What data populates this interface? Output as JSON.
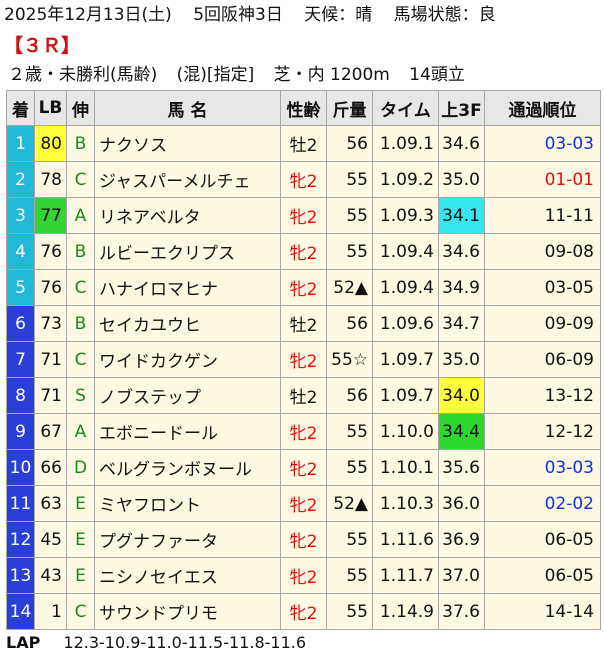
{
  "header": {
    "date": "2025年12月13日(土)",
    "meeting": "5回阪神3日",
    "weather": "天候：晴",
    "track": "馬場状態：良"
  },
  "race_no": "【３Ｒ】",
  "conditions": {
    "class": "２歳・未勝利(馬齢)",
    "type": "(混)[指定]",
    "course": "芝・内 1200m",
    "field": "14頭立"
  },
  "columns": [
    "着",
    "LB",
    "伸",
    "馬 名",
    "性齢",
    "斤量",
    "タイム",
    "上3F",
    "通過順位"
  ],
  "colors": {
    "waku": [
      "#ffffff",
      "#222222",
      "#e62020",
      "#1a3fd8",
      "#ffee33",
      "#22a022",
      "#f39a1e",
      "#ff6fb0"
    ],
    "lb_yellow": "#ffff3c",
    "lb_green": "#33d433",
    "f3_cyan": "#33e6f0",
    "f3_yellow": "#ffff3c",
    "f3_green": "#2ad92a",
    "female": "#e01010",
    "corner_blue": "#1030e0",
    "corner_red": "#e01010"
  },
  "rows": [
    {
      "pos": "1",
      "waku_bg": "#22b8d8",
      "lb": "80",
      "lb_bg": "#ffff3c",
      "nobi": "B",
      "name": "ナクソス",
      "sex": "牡2",
      "female": false,
      "kin": "56",
      "time": "1.09.1",
      "f3": "34.6",
      "f3_bg": "",
      "corner": "03-03",
      "corner_color": "blue"
    },
    {
      "pos": "2",
      "waku_bg": "#22b8d8",
      "lb": "78",
      "lb_bg": "",
      "nobi": "C",
      "name": "ジャスパーメルチェ",
      "sex": "牝2",
      "female": true,
      "kin": "55",
      "time": "1.09.2",
      "f3": "35.0",
      "f3_bg": "",
      "corner": "01-01",
      "corner_color": "red"
    },
    {
      "pos": "3",
      "waku_bg": "#22b8d8",
      "lb": "77",
      "lb_bg": "#33d433",
      "nobi": "A",
      "name": "リネアベルタ",
      "sex": "牝2",
      "female": true,
      "kin": "55",
      "time": "1.09.3",
      "f3": "34.1",
      "f3_bg": "#33e6f0",
      "corner": "11-11",
      "corner_color": ""
    },
    {
      "pos": "4",
      "waku_bg": "#22b8d8",
      "lb": "76",
      "lb_bg": "",
      "nobi": "B",
      "name": "ルビーエクリプス",
      "sex": "牝2",
      "female": true,
      "kin": "55",
      "time": "1.09.4",
      "f3": "34.6",
      "f3_bg": "",
      "corner": "09-08",
      "corner_color": ""
    },
    {
      "pos": "5",
      "waku_bg": "#22b8d8",
      "lb": "76",
      "lb_bg": "",
      "nobi": "C",
      "name": "ハナイロマヒナ",
      "sex": "牝2",
      "female": true,
      "kin": "52▲",
      "time": "1.09.4",
      "f3": "34.9",
      "f3_bg": "",
      "corner": "03-05",
      "corner_color": ""
    },
    {
      "pos": "6",
      "waku_bg": "#2a3fd8",
      "lb": "73",
      "lb_bg": "",
      "nobi": "B",
      "name": "セイカユウヒ",
      "sex": "牡2",
      "female": false,
      "kin": "56",
      "time": "1.09.6",
      "f3": "34.7",
      "f3_bg": "",
      "corner": "09-09",
      "corner_color": ""
    },
    {
      "pos": "7",
      "waku_bg": "#2a3fd8",
      "lb": "71",
      "lb_bg": "",
      "nobi": "C",
      "name": "ワイドカクゲン",
      "sex": "牝2",
      "female": true,
      "kin": "55☆",
      "time": "1.09.7",
      "f3": "35.0",
      "f3_bg": "",
      "corner": "06-09",
      "corner_color": ""
    },
    {
      "pos": "8",
      "waku_bg": "#2a3fd8",
      "lb": "71",
      "lb_bg": "",
      "nobi": "S",
      "name": "ノブステップ",
      "sex": "牡2",
      "female": false,
      "kin": "56",
      "time": "1.09.7",
      "f3": "34.0",
      "f3_bg": "#ffff3c",
      "corner": "13-12",
      "corner_color": ""
    },
    {
      "pos": "9",
      "waku_bg": "#2a3fd8",
      "lb": "67",
      "lb_bg": "",
      "nobi": "A",
      "name": "エボニードール",
      "sex": "牝2",
      "female": true,
      "kin": "55",
      "time": "1.10.0",
      "f3": "34.4",
      "f3_bg": "#2ad92a",
      "corner": "12-12",
      "corner_color": ""
    },
    {
      "pos": "10",
      "waku_bg": "#2a3fd8",
      "lb": "66",
      "lb_bg": "",
      "nobi": "D",
      "name": "ベルグランボヌール",
      "sex": "牝2",
      "female": true,
      "kin": "55",
      "time": "1.10.1",
      "f3": "35.6",
      "f3_bg": "",
      "corner": "03-03",
      "corner_color": "blue"
    },
    {
      "pos": "11",
      "waku_bg": "#2a3fd8",
      "lb": "63",
      "lb_bg": "",
      "nobi": "E",
      "name": "ミヤフロント",
      "sex": "牝2",
      "female": true,
      "kin": "52▲",
      "time": "1.10.3",
      "f3": "36.0",
      "f3_bg": "",
      "corner": "02-02",
      "corner_color": "blue"
    },
    {
      "pos": "12",
      "waku_bg": "#2a3fd8",
      "lb": "45",
      "lb_bg": "",
      "nobi": "E",
      "name": "プグナファータ",
      "sex": "牝2",
      "female": true,
      "kin": "55",
      "time": "1.11.6",
      "f3": "36.9",
      "f3_bg": "",
      "corner": "06-05",
      "corner_color": ""
    },
    {
      "pos": "13",
      "waku_bg": "#2a3fd8",
      "lb": "43",
      "lb_bg": "",
      "nobi": "E",
      "name": "ニシノセイエス",
      "sex": "牝2",
      "female": true,
      "kin": "55",
      "time": "1.11.7",
      "f3": "37.0",
      "f3_bg": "",
      "corner": "06-05",
      "corner_color": ""
    },
    {
      "pos": "14",
      "waku_bg": "#2a3fd8",
      "lb": "1",
      "lb_bg": "",
      "nobi": "C",
      "name": "サウンドプリモ",
      "sex": "牝2",
      "female": true,
      "kin": "55",
      "time": "1.14.9",
      "f3": "37.6",
      "f3_bg": "",
      "corner": "14-14",
      "corner_color": ""
    }
  ],
  "lap": {
    "label": "LAP",
    "value": "12.3-10.9-11.0-11.5-11.8-11.6"
  }
}
